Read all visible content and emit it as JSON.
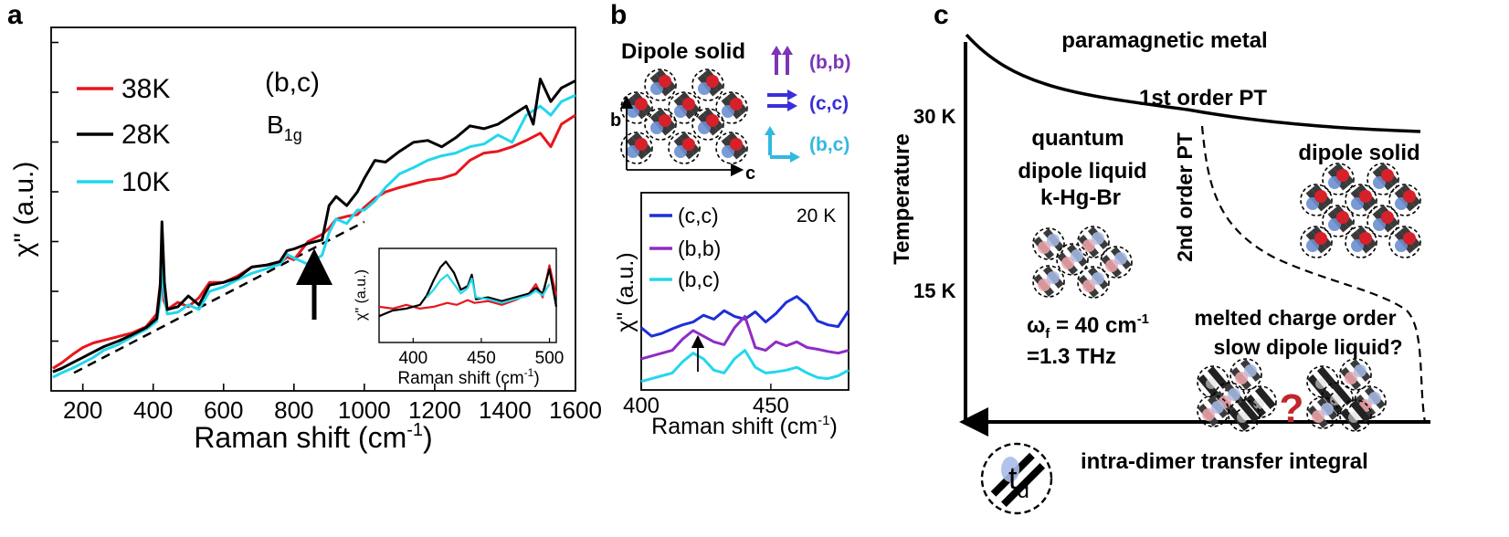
{
  "figure": {
    "panels": [
      {
        "letter": "a",
        "chart_data": {
          "type": "line",
          "xlabel": "Raman shift (cm-1)",
          "ylabel": "χ\" (a.u.)",
          "xlim": [
            110,
            1600
          ],
          "xticks": [
            200,
            400,
            600,
            800,
            1000,
            1200,
            1400,
            1600
          ],
          "annotation_text": "(b,c)",
          "annotation_symmetry": "B",
          "annotation_subscript": "1g",
          "series": [
            {
              "name": "38K",
              "color": "#e8161e",
              "x": [
                115,
                140,
                170,
                200,
                230,
                260,
                300,
                340,
                380,
                410,
                425,
                430,
                440,
                470,
                500,
                530,
                560,
                600,
                640,
                680,
                720,
                760,
                780,
                800,
                840,
                880,
                900,
                920,
                950,
                980,
                1000,
                1030,
                1060,
                1100,
                1140,
                1180,
                1220,
                1260,
                1300,
                1340,
                1380,
                1420,
                1460,
                1500,
                1530,
                1560,
                1600
              ],
              "y": [
                0.6,
                0.66,
                0.75,
                0.83,
                0.88,
                0.91,
                0.95,
                0.99,
                1.06,
                1.2,
                1.7,
                1.35,
                1.25,
                1.33,
                1.28,
                1.38,
                1.55,
                1.55,
                1.62,
                1.72,
                1.74,
                1.76,
                1.83,
                1.8,
                2.0,
                2.08,
                2.15,
                2.25,
                2.28,
                2.3,
                2.38,
                2.48,
                2.55,
                2.6,
                2.64,
                2.68,
                2.7,
                2.75,
                2.9,
                2.98,
                3.0,
                3.05,
                3.12,
                3.2,
                3.05,
                3.3,
                3.4
              ]
            },
            {
              "name": "28K",
              "color": "#000000",
              "x": [
                115,
                140,
                170,
                200,
                230,
                260,
                300,
                340,
                380,
                410,
                420,
                425,
                432,
                440,
                470,
                500,
                530,
                560,
                600,
                640,
                680,
                720,
                760,
                780,
                800,
                840,
                880,
                900,
                920,
                950,
                980,
                1000,
                1030,
                1060,
                1100,
                1140,
                1180,
                1220,
                1260,
                1300,
                1340,
                1380,
                1420,
                1460,
                1480,
                1500,
                1530,
                1560,
                1600
              ],
              "y": [
                0.56,
                0.6,
                0.66,
                0.72,
                0.78,
                0.84,
                0.9,
                0.97,
                1.05,
                1.15,
                1.5,
                2.22,
                1.55,
                1.25,
                1.28,
                1.4,
                1.3,
                1.52,
                1.55,
                1.6,
                1.72,
                1.74,
                1.78,
                1.9,
                1.92,
                1.98,
                2.02,
                2.4,
                2.5,
                2.4,
                2.55,
                2.7,
                2.9,
                2.88,
                3.0,
                3.1,
                3.12,
                3.05,
                3.15,
                3.28,
                3.25,
                3.3,
                3.4,
                3.5,
                3.3,
                3.8,
                3.55,
                3.7,
                3.78
              ]
            },
            {
              "name": "10K",
              "color": "#22d7ec",
              "x": [
                115,
                140,
                170,
                200,
                230,
                260,
                300,
                340,
                380,
                410,
                420,
                425,
                432,
                440,
                470,
                500,
                530,
                560,
                600,
                640,
                680,
                720,
                760,
                780,
                800,
                840,
                860,
                880,
                900,
                920,
                950,
                980,
                1000,
                1030,
                1060,
                1100,
                1140,
                1180,
                1220,
                1260,
                1300,
                1340,
                1380,
                1420,
                1460,
                1500,
                1530,
                1560,
                1600
              ],
              "y": [
                0.5,
                0.55,
                0.6,
                0.66,
                0.72,
                0.8,
                0.86,
                0.95,
                1.03,
                1.12,
                1.35,
                1.75,
                1.4,
                1.2,
                1.22,
                1.3,
                1.25,
                1.45,
                1.5,
                1.58,
                1.65,
                1.7,
                1.75,
                1.86,
                1.82,
                1.75,
                1.8,
                1.85,
                2.1,
                2.25,
                2.2,
                2.35,
                2.35,
                2.45,
                2.6,
                2.75,
                2.82,
                2.9,
                2.95,
                2.98,
                3.05,
                3.08,
                3.18,
                3.1,
                3.4,
                3.5,
                3.4,
                3.55,
                3.62
              ]
            }
          ],
          "baseline": {
            "style": "dashed",
            "x": [
              175,
              1000
            ],
            "y": [
              0.55,
              2.22
            ]
          },
          "arrow_at_x": 850,
          "inset": {
            "xlabel": "Raman shift (cm-1)",
            "ylabel": "χ\" (a.u.)",
            "xlim": [
              375,
              505
            ],
            "xticks": [
              400,
              450,
              500
            ],
            "series": [
              {
                "name": "38K",
                "color": "#e8161e",
                "x": [
                  375,
                  385,
                  395,
                  405,
                  415,
                  425,
                  432,
                  440,
                  445,
                  455,
                  465,
                  475,
                  485,
                  490,
                  495,
                  500,
                  505
                ],
                "y": [
                  0.38,
                  0.36,
                  0.4,
                  0.36,
                  0.38,
                  0.42,
                  0.4,
                  0.45,
                  0.42,
                  0.44,
                  0.4,
                  0.45,
                  0.52,
                  0.62,
                  0.48,
                  0.82,
                  0.5
                ]
              },
              {
                "name": "28K",
                "color": "#000000",
                "x": [
                  375,
                  385,
                  395,
                  405,
                  410,
                  415,
                  420,
                  424,
                  430,
                  435,
                  440,
                  443,
                  446,
                  455,
                  465,
                  475,
                  485,
                  490,
                  495,
                  500,
                  505
                ],
                "y": [
                  0.28,
                  0.34,
                  0.36,
                  0.4,
                  0.5,
                  0.66,
                  0.8,
                  0.86,
                  0.74,
                  0.56,
                  0.6,
                  0.72,
                  0.46,
                  0.48,
                  0.44,
                  0.48,
                  0.52,
                  0.58,
                  0.52,
                  0.78,
                  0.38
                ]
              },
              {
                "name": "10K",
                "color": "#22d7ec",
                "x": [
                  410,
                  415,
                  420,
                  425,
                  430,
                  435,
                  440,
                  443,
                  446,
                  455,
                  465,
                  475,
                  485,
                  490,
                  495,
                  500
                ],
                "y": [
                  0.48,
                  0.56,
                  0.66,
                  0.72,
                  0.62,
                  0.52,
                  0.58,
                  0.68,
                  0.48,
                  0.46,
                  0.42,
                  0.46,
                  0.5,
                  0.55,
                  0.5,
                  0.62
                ]
              }
            ]
          }
        }
      },
      {
        "letter": "b",
        "diagram_title": "Dipole solid",
        "axis_b": "b",
        "axis_c": "c",
        "polarization_legend": [
          {
            "label": "(b,b)",
            "color": "#7b35b5"
          },
          {
            "label": "(c,c)",
            "color": "#3a2fd8"
          },
          {
            "label": "(b,c)",
            "color": "#33b8e0"
          }
        ],
        "chart_data": {
          "type": "line",
          "xlabel": "Raman shift (cm-1)",
          "ylabel": "χ\" (a.u.)",
          "annotation": "20 K",
          "xlim": [
            400,
            480
          ],
          "xticks": [
            400,
            450
          ],
          "arrow_at_x": 421,
          "series": [
            {
              "name": "(c,c)",
              "color": "#1d2fd6",
              "x": [
                400,
                404,
                408,
                412,
                416,
                420,
                424,
                428,
                432,
                436,
                440,
                444,
                448,
                452,
                456,
                460,
                464,
                468,
                472,
                476,
                480
              ],
              "y": [
                1.5,
                1.35,
                1.4,
                1.48,
                1.55,
                1.6,
                1.72,
                1.65,
                1.8,
                1.7,
                1.65,
                1.78,
                1.6,
                1.75,
                1.95,
                2.05,
                1.9,
                1.62,
                1.55,
                1.52,
                1.8
              ]
            },
            {
              "name": "(b,b)",
              "color": "#8e2dc4",
              "x": [
                400,
                404,
                408,
                412,
                416,
                420,
                424,
                428,
                432,
                436,
                440,
                444,
                448,
                452,
                456,
                460,
                464,
                468,
                472,
                476,
                480
              ],
              "y": [
                0.95,
                1.0,
                1.05,
                1.1,
                1.3,
                1.45,
                1.35,
                1.25,
                1.2,
                1.5,
                1.7,
                1.15,
                1.1,
                1.25,
                1.18,
                1.25,
                1.15,
                1.12,
                1.08,
                1.05,
                1.1
              ]
            },
            {
              "name": "(b,c)",
              "color": "#22d7ec",
              "x": [
                400,
                404,
                408,
                412,
                416,
                420,
                424,
                428,
                432,
                436,
                440,
                444,
                448,
                452,
                456,
                460,
                464,
                468,
                472,
                476,
                480
              ],
              "y": [
                0.55,
                0.6,
                0.65,
                0.7,
                0.9,
                1.05,
                0.95,
                0.75,
                0.7,
                0.95,
                1.1,
                0.8,
                0.7,
                0.72,
                0.75,
                0.8,
                0.7,
                0.62,
                0.6,
                0.65,
                0.75
              ]
            }
          ]
        }
      },
      {
        "letter": "c",
        "y_axis_label": "Temperature",
        "x_axis_label": "intra-dimer transfer integral",
        "td_symbol": "t",
        "td_subscript": "d",
        "temp_ticks": [
          "30 K",
          "15 K"
        ],
        "regions": {
          "paramagnetic": "paramagnetic metal",
          "first_order": "1st order PT",
          "second_order": "2nd order PT",
          "quantum_line1": "quantum",
          "quantum_line2": "dipole liquid",
          "quantum_line3": "k-Hg-Br",
          "omega_symbol": "ω",
          "omega_subscript": "f",
          "omega_value": " = 40 cm",
          "omega_exponent": "-1",
          "thz": "=1.3 THz",
          "dipole_solid": "dipole solid",
          "melted_line1": "melted charge order",
          "melted_line2": "slow dipole liquid?",
          "question": "?"
        }
      }
    ]
  }
}
